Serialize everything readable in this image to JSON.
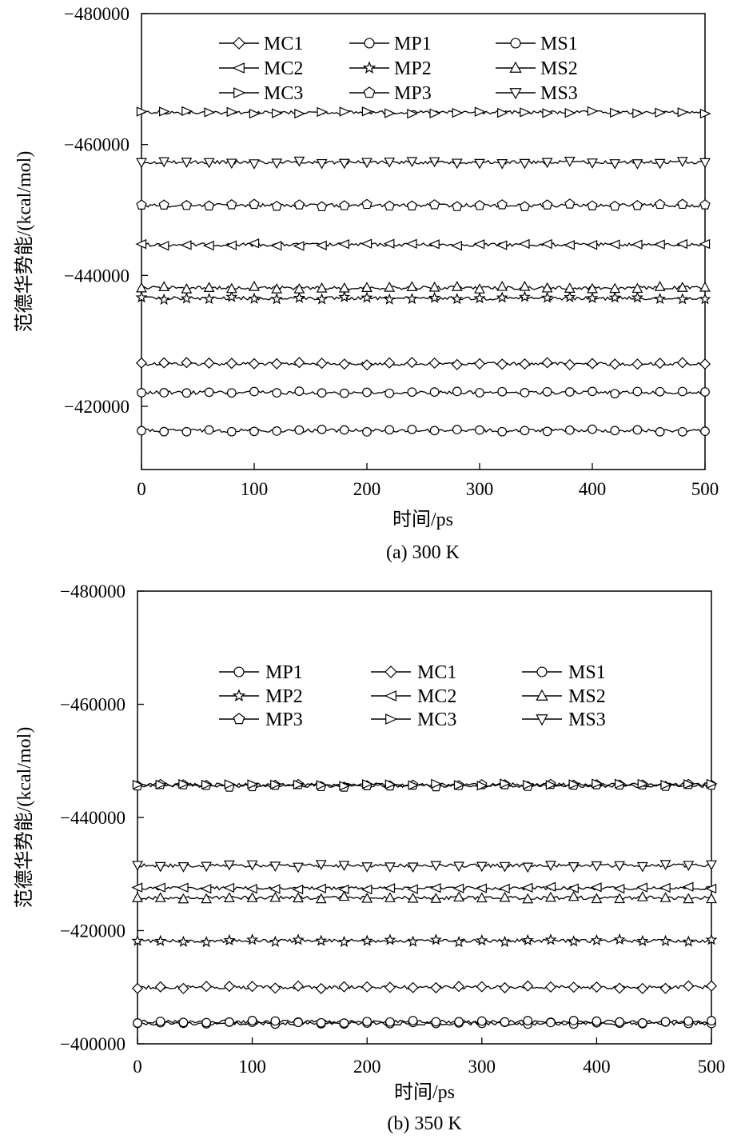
{
  "chart_data": [
    {
      "type": "line",
      "caption": "(a) 300 K",
      "xlabel": "时间/ps",
      "ylabel": "范德华势能/(kcal/mol)",
      "xlim": [
        0,
        500
      ],
      "ylim": [
        -410000,
        -480000
      ],
      "x_ticks": [
        0,
        100,
        200,
        300,
        400,
        500
      ],
      "y_ticks": [
        -420000,
        -440000,
        -460000,
        -480000
      ],
      "y_tick_labels": [
        "−420000",
        "−440000",
        "−460000",
        "−480000"
      ],
      "legend": {
        "placement": "top",
        "columns": 3
      },
      "series": [
        {
          "name": "MC1",
          "marker": "diamond",
          "value": -426500
        },
        {
          "name": "MC2",
          "marker": "triangle-left",
          "value": -444700
        },
        {
          "name": "MC3",
          "marker": "triangle-right",
          "value": -464900
        },
        {
          "name": "MP1",
          "marker": "circle",
          "value": -416300
        },
        {
          "name": "MP2",
          "marker": "star",
          "value": -436500
        },
        {
          "name": "MP3",
          "marker": "pentagon",
          "value": -450700
        },
        {
          "name": "MS1",
          "marker": "circle",
          "value": -422100
        },
        {
          "name": "MS2",
          "marker": "triangle-up",
          "value": -438100
        },
        {
          "name": "MS3",
          "marker": "triangle-down",
          "value": -457300
        }
      ]
    },
    {
      "type": "line",
      "caption": "(b) 350 K",
      "xlabel": "时间/ps",
      "ylabel": "范德华势能/(kcal/mol)",
      "xlim": [
        0,
        500
      ],
      "ylim": [
        -400000,
        -480000
      ],
      "x_ticks": [
        0,
        100,
        200,
        300,
        400,
        500
      ],
      "y_ticks": [
        -400000,
        -420000,
        -440000,
        -460000,
        -480000
      ],
      "y_tick_labels": [
        "−400000",
        "−420000",
        "−440000",
        "−460000",
        "−480000"
      ],
      "legend": {
        "placement": "top",
        "columns": 3
      },
      "series": [
        {
          "name": "MP1",
          "marker": "circle",
          "value": -403600
        },
        {
          "name": "MP2",
          "marker": "star",
          "value": -418200
        },
        {
          "name": "MP3",
          "marker": "pentagon",
          "value": -445600
        },
        {
          "name": "MC1",
          "marker": "diamond",
          "value": -410000
        },
        {
          "name": "MC2",
          "marker": "triangle-left",
          "value": -427500
        },
        {
          "name": "MC3",
          "marker": "triangle-right",
          "value": -445800
        },
        {
          "name": "MS1",
          "marker": "circle",
          "value": -403900
        },
        {
          "name": "MS2",
          "marker": "triangle-up",
          "value": -425800
        },
        {
          "name": "MS3",
          "marker": "triangle-down",
          "value": -431500
        }
      ]
    }
  ]
}
